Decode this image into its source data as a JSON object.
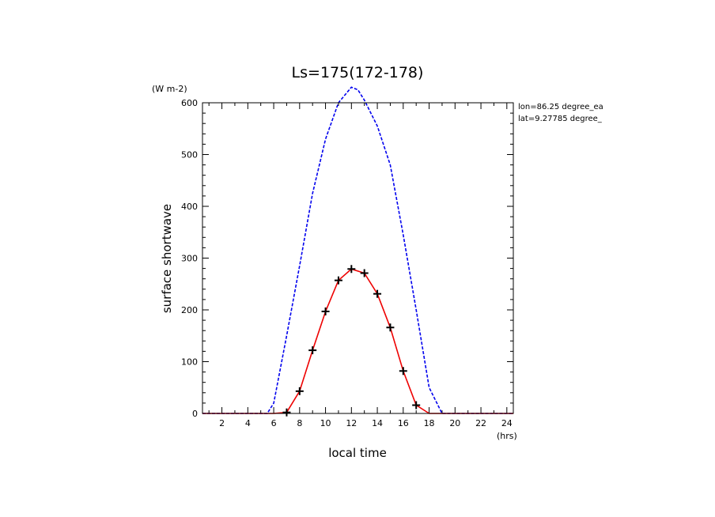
{
  "chart_data": {
    "type": "line",
    "title": "Ls=175(172-178)",
    "xlabel": "local time",
    "x_unit": "(hrs)",
    "ylabel": "surface shortwave",
    "y_unit": "(W m-2)",
    "xlim": [
      0.5,
      24.5
    ],
    "ylim": [
      0,
      600
    ],
    "xticks": [
      2,
      4,
      6,
      8,
      10,
      12,
      14,
      16,
      18,
      20,
      22,
      24
    ],
    "yticks": [
      0,
      100,
      200,
      300,
      400,
      500,
      600
    ],
    "annotations": [
      "lon=86.25 degree_ea",
      "lat=9.27785 degree_"
    ],
    "series": [
      {
        "color": "#0000ee",
        "style": "dashed",
        "x": [
          0.5,
          5.5,
          6.0,
          7.0,
          8.0,
          9.0,
          10.0,
          11.0,
          12.0,
          12.5,
          13.0,
          14.0,
          15.0,
          16.0,
          17.0,
          18.0,
          19.0,
          24.5
        ],
        "y": [
          0,
          0,
          20,
          150,
          285,
          425,
          530,
          600,
          630,
          625,
          605,
          555,
          480,
          345,
          200,
          50,
          0,
          0
        ]
      },
      {
        "color": "#ee0000",
        "style": "solid",
        "markers": "plus",
        "x": [
          0.5,
          1.0,
          2.0,
          3.0,
          4.0,
          5.0,
          6.0,
          7.0,
          8.0,
          9.0,
          10.0,
          11.0,
          12.0,
          13.0,
          14.0,
          15.0,
          16.0,
          17.0,
          18.0,
          19.0,
          20.0,
          21.0,
          22.0,
          23.0,
          24.0,
          24.5
        ],
        "y": [
          0,
          0,
          0,
          0,
          0,
          0,
          0,
          2,
          43,
          122,
          197,
          257,
          279,
          271,
          231,
          166,
          82,
          16,
          0,
          0,
          0,
          0,
          0,
          0,
          0,
          0
        ]
      }
    ]
  }
}
